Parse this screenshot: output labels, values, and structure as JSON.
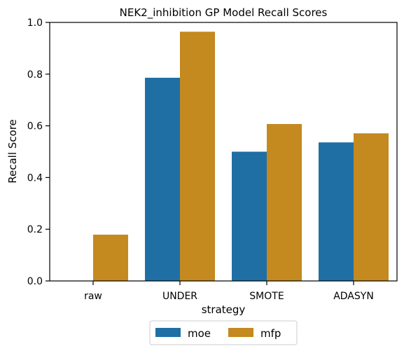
{
  "chart_data": {
    "type": "bar",
    "title": "NEK2_inhibition GP Model Recall Scores",
    "xlabel": "strategy",
    "ylabel": "Recall Score",
    "categories": [
      "raw",
      "UNDER",
      "SMOTE",
      "ADASYN"
    ],
    "series": [
      {
        "name": "moe",
        "color": "#1f6fa5",
        "values": [
          0.0,
          0.786,
          0.5,
          0.536
        ]
      },
      {
        "name": "mfp",
        "color": "#c4891f",
        "values": [
          0.179,
          0.964,
          0.607,
          0.571
        ]
      }
    ],
    "ylim": [
      0,
      1.0
    ],
    "yticks": [
      "0.0",
      "0.2",
      "0.4",
      "0.6",
      "0.8",
      "1.0"
    ],
    "grid": false,
    "legend": "bottom-center"
  }
}
